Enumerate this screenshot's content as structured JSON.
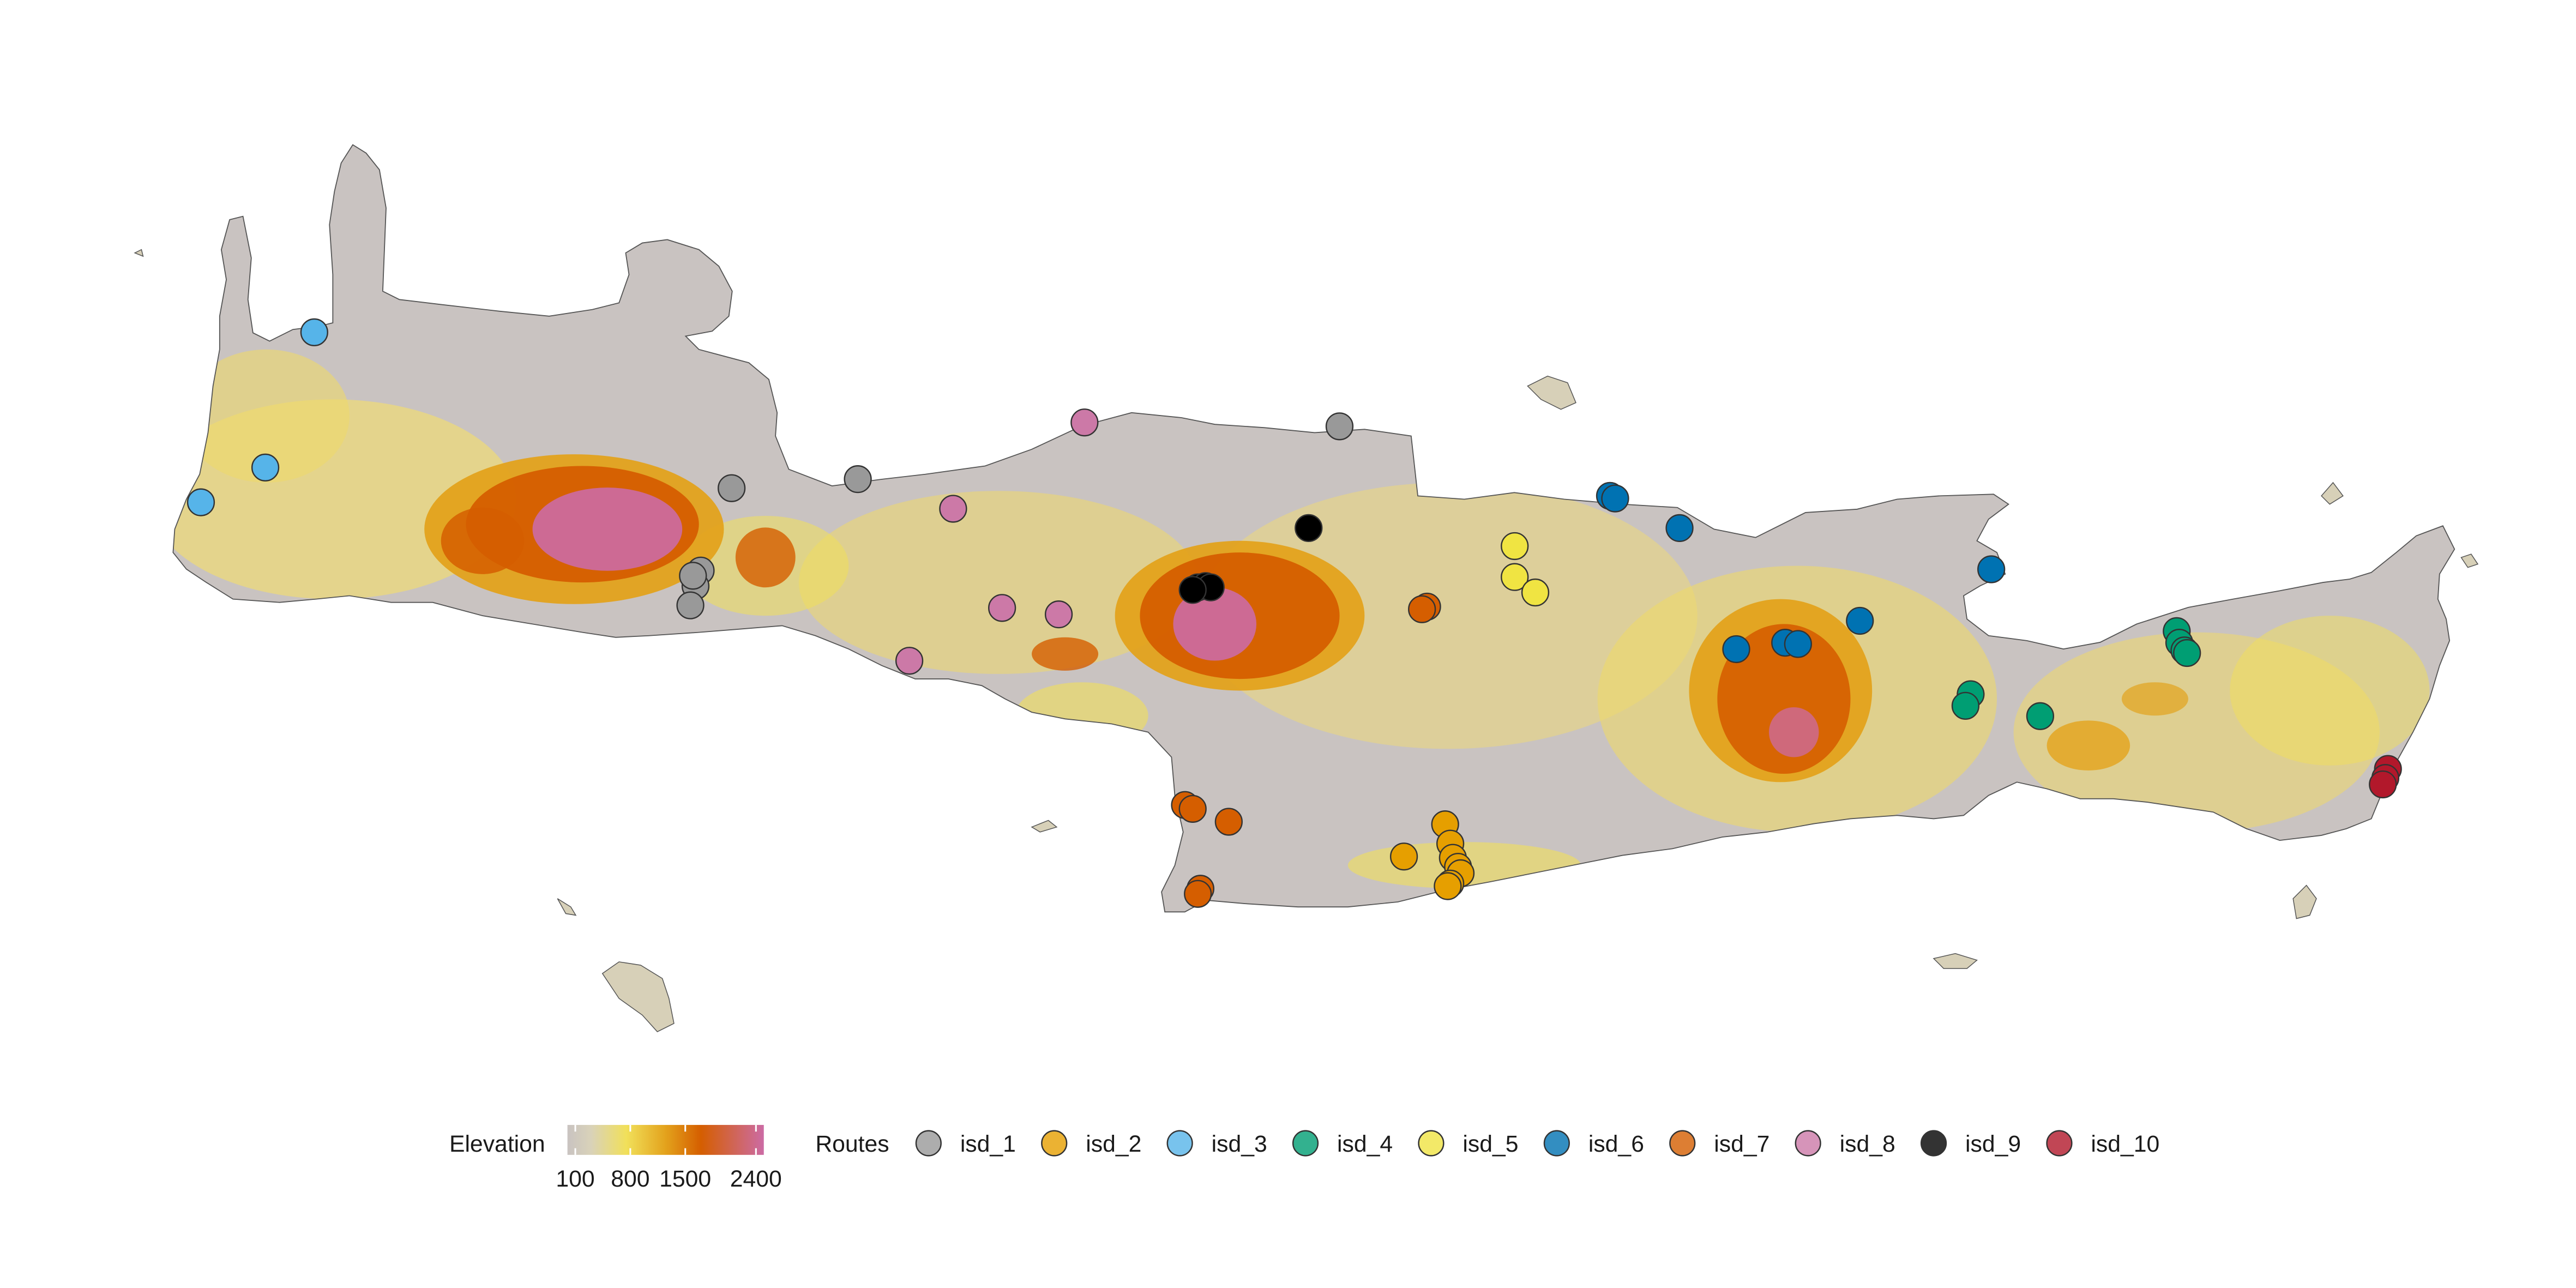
{
  "colors": {
    "background": "#ffffff",
    "land_low": "#c9c3c1",
    "land_mid": "#f1e05a",
    "land_high": "#e3a21c",
    "land_higher": "#d55e00",
    "land_peak": "#cc6ba4",
    "coast": "#555555",
    "point_stroke": "#333333"
  },
  "legend": {
    "elevation_title": "Elevation",
    "elevation_ticks": [
      "100",
      "800",
      "1500",
      "2400"
    ],
    "elevation_values": [
      100,
      800,
      1500,
      2400
    ],
    "elevation_range": [
      0,
      2500
    ],
    "routes_title": "Routes"
  },
  "routes": [
    {
      "name": "isd_1",
      "color": "#999999",
      "points": [
        [
          0.284,
          0.379
        ],
        [
          0.333,
          0.372
        ],
        [
          0.52,
          0.331
        ],
        [
          0.272,
          0.443
        ],
        [
          0.27,
          0.455
        ],
        [
          0.268,
          0.47
        ],
        [
          0.269,
          0.447
        ]
      ]
    },
    {
      "name": "isd_2",
      "color": "#e69f00",
      "points": [
        [
          0.561,
          0.64
        ],
        [
          0.563,
          0.655
        ],
        [
          0.564,
          0.666
        ],
        [
          0.566,
          0.673
        ],
        [
          0.567,
          0.678
        ],
        [
          0.563,
          0.686
        ],
        [
          0.545,
          0.665
        ],
        [
          0.562,
          0.688
        ]
      ]
    },
    {
      "name": "isd_3",
      "color": "#56b4e9",
      "points": [
        [
          0.122,
          0.258
        ],
        [
          0.103,
          0.363
        ],
        [
          0.078,
          0.39
        ]
      ]
    },
    {
      "name": "isd_4",
      "color": "#009e73",
      "points": [
        [
          0.845,
          0.49
        ],
        [
          0.846,
          0.499
        ],
        [
          0.848,
          0.505
        ],
        [
          0.765,
          0.539
        ],
        [
          0.763,
          0.548
        ],
        [
          0.792,
          0.556
        ],
        [
          0.849,
          0.507
        ]
      ]
    },
    {
      "name": "isd_5",
      "color": "#f0e442",
      "points": [
        [
          0.588,
          0.424
        ],
        [
          0.588,
          0.448
        ],
        [
          0.596,
          0.46
        ]
      ]
    },
    {
      "name": "isd_6",
      "color": "#0072b2",
      "points": [
        [
          0.625,
          0.385
        ],
        [
          0.627,
          0.387
        ],
        [
          0.652,
          0.41
        ],
        [
          0.773,
          0.442
        ],
        [
          0.674,
          0.504
        ],
        [
          0.693,
          0.499
        ],
        [
          0.698,
          0.5
        ],
        [
          0.722,
          0.482
        ]
      ]
    },
    {
      "name": "isd_7",
      "color": "#d55e00",
      "points": [
        [
          0.554,
          0.471
        ],
        [
          0.552,
          0.473
        ],
        [
          0.46,
          0.625
        ],
        [
          0.463,
          0.628
        ],
        [
          0.477,
          0.638
        ],
        [
          0.466,
          0.69
        ],
        [
          0.465,
          0.694
        ]
      ]
    },
    {
      "name": "isd_8",
      "color": "#cc79a7",
      "points": [
        [
          0.421,
          0.328
        ],
        [
          0.37,
          0.395
        ],
        [
          0.389,
          0.472
        ],
        [
          0.411,
          0.477
        ],
        [
          0.353,
          0.513
        ]
      ]
    },
    {
      "name": "isd_9",
      "color": "#000000",
      "points": [
        [
          0.508,
          0.41
        ],
        [
          0.465,
          0.456
        ],
        [
          0.468,
          0.455
        ],
        [
          0.47,
          0.456
        ],
        [
          0.463,
          0.458
        ]
      ]
    },
    {
      "name": "isd_10",
      "color": "#b2182b",
      "points": [
        [
          0.927,
          0.597
        ],
        [
          0.926,
          0.604
        ],
        [
          0.925,
          0.609
        ]
      ]
    }
  ]
}
